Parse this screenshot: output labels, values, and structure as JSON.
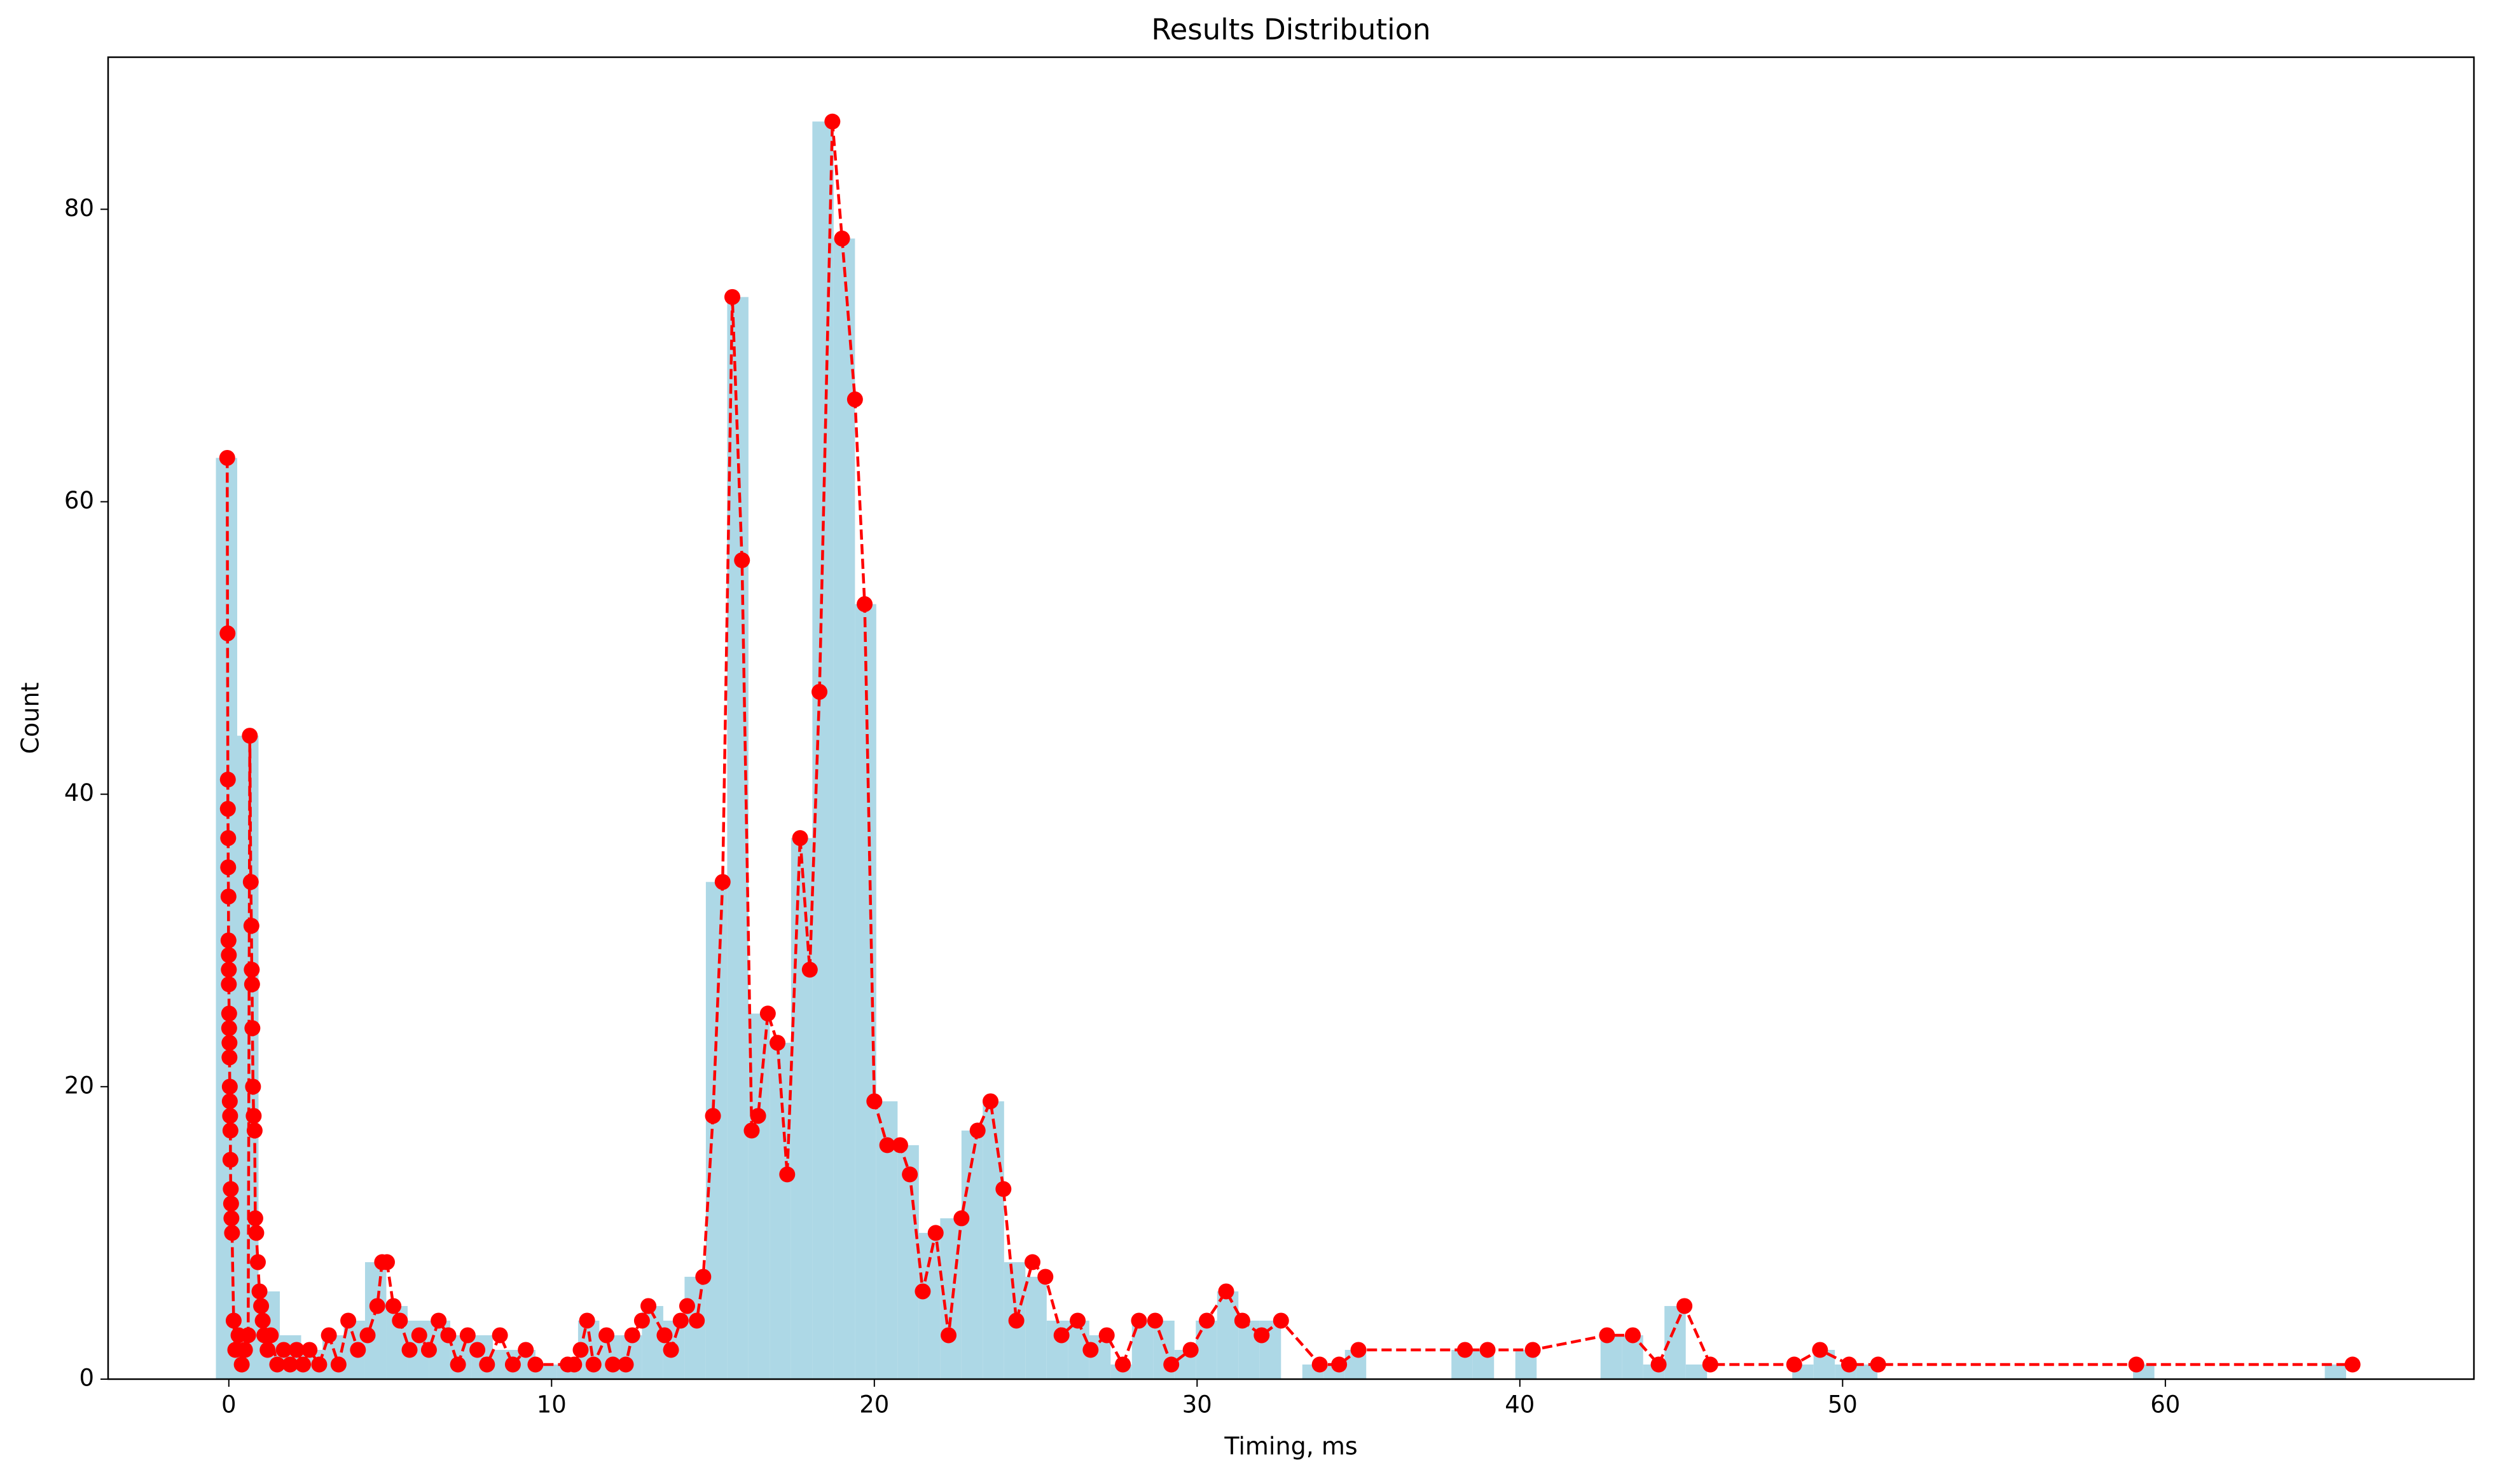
{
  "chart_data": {
    "title": "Results Distribution",
    "xlabel": "Timing, ms",
    "ylabel": "Count",
    "xlim": [
      -3.74,
      69.56
    ],
    "ylim": [
      0,
      90.4
    ],
    "xticks": [
      0,
      10,
      20,
      30,
      40,
      50,
      60
    ],
    "yticks": [
      0,
      20,
      40,
      60,
      80
    ],
    "layers": [
      {
        "type": "histogram",
        "color": "#add8e6",
        "bins": [
          -0.4,
          0.26,
          0.92,
          1.58,
          2.24,
          2.9,
          3.56,
          4.22,
          4.88,
          5.54,
          6.2,
          6.86,
          7.52,
          8.18,
          8.84,
          9.5,
          10.16,
          10.82,
          11.48,
          12.14,
          12.8,
          13.46,
          14.12,
          14.78,
          15.44,
          16.1,
          16.76,
          17.42,
          18.08,
          18.74,
          19.4,
          20.06,
          20.72,
          21.38,
          22.04,
          22.7,
          23.36,
          24.02,
          24.68,
          25.34,
          26.0,
          26.66,
          27.32,
          27.98,
          28.64,
          29.3,
          29.96,
          30.62,
          31.28,
          31.94,
          32.6,
          33.26,
          33.92,
          34.58,
          35.24,
          35.9,
          36.56,
          37.22,
          37.88,
          38.54,
          39.2,
          39.86,
          40.52,
          41.18,
          41.84,
          42.5,
          43.16,
          43.82,
          44.48,
          45.14,
          45.8,
          46.46,
          47.12,
          47.78,
          48.44,
          49.1,
          49.76,
          50.42,
          51.08,
          51.74,
          52.4,
          53.06,
          53.72,
          54.38,
          55.04,
          55.7,
          56.36,
          57.02,
          57.68,
          58.34,
          59.0,
          59.66,
          60.32,
          60.98,
          61.64,
          62.3,
          62.96,
          63.62,
          64.28,
          64.94,
          65.6
        ],
        "values": [
          63,
          44,
          6,
          3,
          2,
          3,
          4,
          8,
          5,
          4,
          4,
          3,
          3,
          2,
          2,
          1,
          1,
          4,
          3,
          3,
          5,
          4,
          7,
          34,
          74,
          25,
          23,
          37,
          86,
          78,
          53,
          19,
          16,
          10,
          11,
          17,
          19,
          8,
          7,
          4,
          4,
          3,
          1,
          4,
          4,
          2,
          4,
          6,
          4,
          4,
          0,
          1,
          1,
          2,
          0,
          0,
          0,
          0,
          2,
          2,
          0,
          2,
          0,
          0,
          0,
          3,
          3,
          1,
          5,
          1,
          0,
          0,
          0,
          0,
          1,
          2,
          1,
          1,
          0,
          0,
          0,
          0,
          0,
          0,
          0,
          0,
          0,
          0,
          0,
          0,
          1,
          0,
          0,
          0,
          0,
          0,
          0,
          0,
          0,
          1
        ]
      },
      {
        "type": "line",
        "color": "#ff0000",
        "linestyle": "dashed",
        "marker": "o",
        "x": [
          -0.05,
          -0.04,
          -0.03,
          -0.03,
          -0.02,
          -0.02,
          -0.01,
          -0.01,
          0,
          0,
          0,
          0.01,
          0.01,
          0.02,
          0.02,
          0.03,
          0.03,
          0.04,
          0.05,
          0.05,
          0.06,
          0.07,
          0.08,
          0.1,
          0.15,
          0.2,
          0.3,
          0.4,
          0.5,
          0.6,
          0.65,
          0.68,
          0.7,
          0.71,
          0.72,
          0.73,
          0.75,
          0.77,
          0.8,
          0.82,
          0.85,
          0.9,
          0.95,
          1.0,
          1.05,
          1.1,
          1.2,
          1.3,
          1.5,
          1.7,
          1.9,
          2.1,
          2.3,
          2.5,
          2.8,
          3.1,
          3.4,
          3.7,
          4.0,
          4.3,
          4.6,
          4.75,
          4.9,
          5.1,
          5.3,
          5.6,
          5.9,
          6.2,
          6.5,
          6.8,
          7.1,
          7.4,
          7.7,
          8.0,
          8.4,
          8.8,
          9.2,
          9.5,
          10.5,
          10.7,
          10.9,
          11.1,
          11.3,
          11.7,
          11.9,
          12.3,
          12.5,
          12.8,
          13.0,
          13.5,
          13.7,
          14.0,
          14.2,
          14.5,
          14.7,
          15.0,
          15.3,
          15.6,
          15.9,
          16.2,
          16.4,
          16.7,
          17.0,
          17.3,
          17.7,
          18.0,
          18.3,
          18.7,
          19.0,
          19.4,
          19.7,
          20.0,
          20.4,
          20.8,
          21.1,
          21.5,
          21.9,
          22.3,
          22.7,
          23.2,
          23.6,
          24.0,
          24.4,
          24.9,
          25.3,
          25.8,
          26.3,
          26.7,
          27.2,
          27.7,
          28.2,
          28.7,
          29.2,
          29.8,
          30.3,
          30.9,
          31.4,
          32.0,
          32.6,
          33.8,
          34.4,
          35.0,
          38.3,
          39.0,
          40.4,
          42.7,
          43.5,
          44.3,
          45.1,
          45.9,
          48.5,
          49.3,
          50.2,
          51.1,
          59.1,
          65.8
        ],
        "values": [
          63,
          51,
          41,
          39,
          37,
          35,
          33,
          30,
          29,
          28,
          27,
          25,
          24,
          23,
          22,
          20,
          19,
          18,
          17,
          15,
          13,
          12,
          11,
          10,
          4,
          2,
          3,
          1,
          2,
          3,
          44,
          34,
          31,
          28,
          27,
          24,
          20,
          18,
          17,
          11,
          10,
          8,
          6,
          5,
          4,
          3,
          2,
          3,
          1,
          2,
          1,
          2,
          1,
          2,
          1,
          3,
          1,
          4,
          2,
          3,
          5,
          8,
          8,
          5,
          4,
          2,
          3,
          2,
          4,
          3,
          1,
          3,
          2,
          1,
          3,
          1,
          2,
          1,
          1,
          1,
          2,
          4,
          1,
          3,
          1,
          1,
          3,
          4,
          5,
          3,
          2,
          4,
          5,
          4,
          7,
          18,
          34,
          74,
          56,
          17,
          18,
          25,
          23,
          14,
          37,
          28,
          47,
          86,
          78,
          67,
          53,
          19,
          16,
          16,
          14,
          6,
          10,
          3,
          11,
          17,
          19,
          13,
          4,
          8,
          7,
          3,
          4,
          2,
          3,
          1,
          4,
          4,
          1,
          2,
          4,
          6,
          4,
          3,
          4,
          1,
          1,
          2,
          2,
          2,
          2,
          3,
          3,
          1,
          5,
          1,
          1,
          2,
          1,
          1,
          1,
          1
        ]
      }
    ]
  }
}
